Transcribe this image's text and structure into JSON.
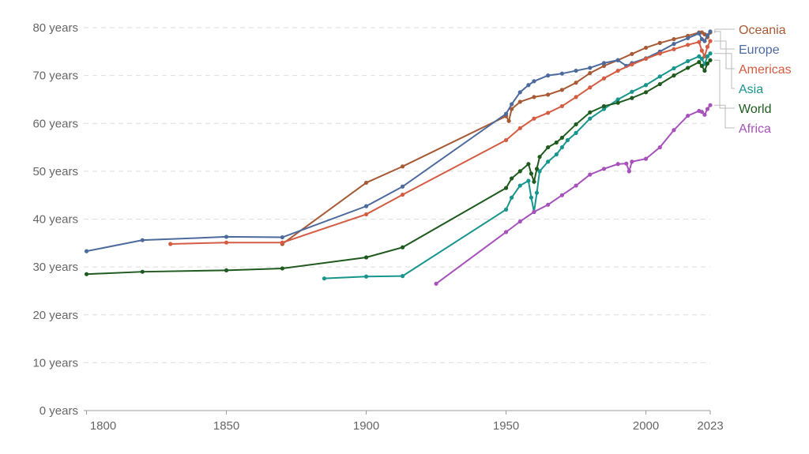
{
  "chart_data": {
    "type": "line",
    "title": "",
    "xlabel": "",
    "ylabel": "",
    "xlim": [
      1799,
      2023
    ],
    "ylim": [
      0,
      80
    ],
    "x_ticks": [
      "1800",
      "1850",
      "1900",
      "1950",
      "2000",
      "2023"
    ],
    "x_tick_values": [
      1800,
      1850,
      1900,
      1950,
      2000,
      2023
    ],
    "y_ticks": [
      "0 years",
      "10 years",
      "20 years",
      "30 years",
      "40 years",
      "50 years",
      "60 years",
      "70 years",
      "80 years"
    ],
    "y_tick_values": [
      0,
      10,
      20,
      30,
      40,
      50,
      60,
      70,
      80
    ],
    "grid": "horizontal dashed",
    "legend_placement": "right",
    "series": [
      {
        "name": "Oceania",
        "color": "#a65a35",
        "points": [
          [
            1870,
            34.8
          ],
          [
            1900,
            47.6
          ],
          [
            1913,
            51.0
          ],
          [
            1950,
            61.5
          ],
          [
            1951,
            60.5
          ],
          [
            1952,
            63
          ],
          [
            1955,
            64.5
          ],
          [
            1960,
            65.5
          ],
          [
            1965,
            66
          ],
          [
            1970,
            67
          ],
          [
            1975,
            68.5
          ],
          [
            1980,
            70.5
          ],
          [
            1985,
            72
          ],
          [
            1990,
            73.2
          ],
          [
            1995,
            74.5
          ],
          [
            2000,
            75.8
          ],
          [
            2005,
            76.8
          ],
          [
            2010,
            77.6
          ],
          [
            2015,
            78.3
          ],
          [
            2019,
            79
          ],
          [
            2020,
            79
          ],
          [
            2021,
            78.6
          ],
          [
            2022,
            78
          ],
          [
            2023,
            79
          ]
        ]
      },
      {
        "name": "Europe",
        "color": "#4c6a9c",
        "points": [
          [
            1800,
            33.3
          ],
          [
            1820,
            35.6
          ],
          [
            1850,
            36.3
          ],
          [
            1870,
            36.2
          ],
          [
            1900,
            42.7
          ],
          [
            1913,
            46.8
          ],
          [
            1950,
            62.0
          ],
          [
            1952,
            64
          ],
          [
            1955,
            66.5
          ],
          [
            1958,
            68
          ],
          [
            1960,
            68.8
          ],
          [
            1965,
            70
          ],
          [
            1970,
            70.4
          ],
          [
            1975,
            71
          ],
          [
            1980,
            71.6
          ],
          [
            1985,
            72.6
          ],
          [
            1990,
            73.2
          ],
          [
            1993,
            72
          ],
          [
            1995,
            72.6
          ],
          [
            2000,
            73.6
          ],
          [
            2005,
            75
          ],
          [
            2010,
            76.6
          ],
          [
            2015,
            77.8
          ],
          [
            2019,
            78.8
          ],
          [
            2020,
            77.6
          ],
          [
            2021,
            77.2
          ],
          [
            2022,
            78.4
          ],
          [
            2023,
            79.2
          ]
        ]
      },
      {
        "name": "Americas",
        "color": "#d35c42",
        "points": [
          [
            1830,
            34.8
          ],
          [
            1850,
            35.1
          ],
          [
            1870,
            35.1
          ],
          [
            1900,
            41.0
          ],
          [
            1913,
            45.1
          ],
          [
            1950,
            56.5
          ],
          [
            1955,
            59
          ],
          [
            1960,
            61
          ],
          [
            1965,
            62.2
          ],
          [
            1970,
            63.6
          ],
          [
            1975,
            65.5
          ],
          [
            1980,
            67.5
          ],
          [
            1985,
            69.4
          ],
          [
            1990,
            71
          ],
          [
            1995,
            72.3
          ],
          [
            2000,
            73.5
          ],
          [
            2005,
            74.6
          ],
          [
            2010,
            75.5
          ],
          [
            2015,
            76.4
          ],
          [
            2019,
            77
          ],
          [
            2020,
            75.2
          ],
          [
            2021,
            74
          ],
          [
            2022,
            76
          ],
          [
            2023,
            77.2
          ]
        ]
      },
      {
        "name": "Asia",
        "color": "#18958c",
        "points": [
          [
            1885,
            27.6
          ],
          [
            1900,
            28.0
          ],
          [
            1913,
            28.1
          ],
          [
            1950,
            42
          ],
          [
            1952,
            44.5
          ],
          [
            1955,
            47
          ],
          [
            1958,
            48
          ],
          [
            1959,
            44.5
          ],
          [
            1960,
            41.5
          ],
          [
            1961,
            45.5
          ],
          [
            1962,
            50
          ],
          [
            1965,
            52
          ],
          [
            1968,
            53.5
          ],
          [
            1970,
            55
          ],
          [
            1972,
            56.5
          ],
          [
            1975,
            58
          ],
          [
            1980,
            61
          ],
          [
            1985,
            63
          ],
          [
            1990,
            65
          ],
          [
            1995,
            66.6
          ],
          [
            2000,
            68
          ],
          [
            2005,
            69.8
          ],
          [
            2010,
            71.5
          ],
          [
            2015,
            73
          ],
          [
            2019,
            74
          ],
          [
            2020,
            73.5
          ],
          [
            2021,
            72.4
          ],
          [
            2022,
            74
          ],
          [
            2023,
            74.6
          ]
        ]
      },
      {
        "name": "World",
        "color": "#1f5a1f",
        "points": [
          [
            1800,
            28.5
          ],
          [
            1820,
            29.0
          ],
          [
            1850,
            29.3
          ],
          [
            1870,
            29.7
          ],
          [
            1900,
            32.0
          ],
          [
            1913,
            34.1
          ],
          [
            1950,
            46.5
          ],
          [
            1952,
            48.5
          ],
          [
            1955,
            50
          ],
          [
            1958,
            51.5
          ],
          [
            1959,
            49.5
          ],
          [
            1960,
            47.8
          ],
          [
            1961,
            50.5
          ],
          [
            1962,
            53
          ],
          [
            1965,
            55
          ],
          [
            1968,
            56
          ],
          [
            1970,
            57
          ],
          [
            1975,
            59.8
          ],
          [
            1980,
            62.3
          ],
          [
            1985,
            63.6
          ],
          [
            1990,
            64.3
          ],
          [
            1995,
            65.3
          ],
          [
            2000,
            66.5
          ],
          [
            2005,
            68.2
          ],
          [
            2010,
            70
          ],
          [
            2015,
            71.6
          ],
          [
            2019,
            72.8
          ],
          [
            2020,
            72
          ],
          [
            2021,
            71
          ],
          [
            2022,
            72.5
          ],
          [
            2023,
            73.2
          ]
        ]
      },
      {
        "name": "Africa",
        "color": "#a652ba",
        "points": [
          [
            1925,
            26.5
          ],
          [
            1950,
            37.3
          ],
          [
            1955,
            39.5
          ],
          [
            1960,
            41.5
          ],
          [
            1965,
            43
          ],
          [
            1970,
            45
          ],
          [
            1975,
            47
          ],
          [
            1980,
            49.3
          ],
          [
            1985,
            50.5
          ],
          [
            1990,
            51.5
          ],
          [
            1993,
            51.6
          ],
          [
            1994,
            50
          ],
          [
            1995,
            52
          ],
          [
            2000,
            52.6
          ],
          [
            2005,
            55
          ],
          [
            2010,
            58.6
          ],
          [
            2015,
            61.6
          ],
          [
            2019,
            62.6
          ],
          [
            2020,
            62.4
          ],
          [
            2021,
            61.8
          ],
          [
            2022,
            63
          ],
          [
            2023,
            63.8
          ]
        ]
      }
    ]
  }
}
